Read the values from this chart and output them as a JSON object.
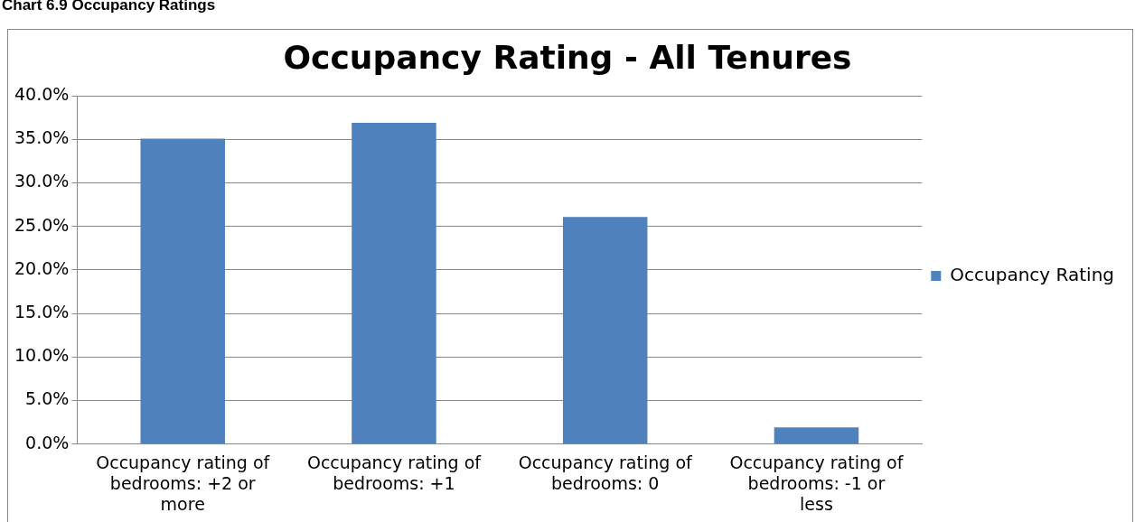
{
  "chart_data": {
    "type": "bar",
    "subtitle": "Chart 6.9 Occupancy Ratings",
    "title": "Occupancy Rating - All Tenures",
    "categories": [
      "Occupancy rating of bedrooms: +2 or more",
      "Occupancy rating of bedrooms: +1",
      "Occupancy rating of bedrooms: 0",
      "Occupancy rating of bedrooms: -1 or less"
    ],
    "series": [
      {
        "name": "Occupancy Rating",
        "color": "#4f81bd",
        "values": [
          35.1,
          36.9,
          26.1,
          1.9
        ]
      }
    ],
    "ylim": [
      0,
      40
    ],
    "yticks": [
      {
        "value": 0,
        "label": "0.0%"
      },
      {
        "value": 5,
        "label": "5.0%"
      },
      {
        "value": 10,
        "label": "10.0%"
      },
      {
        "value": 15,
        "label": "15.0%"
      },
      {
        "value": 20,
        "label": "20.0%"
      },
      {
        "value": 25,
        "label": "25.0%"
      },
      {
        "value": 30,
        "label": "30.0%"
      },
      {
        "value": 35,
        "label": "35.0%"
      },
      {
        "value": 40,
        "label": "40.0%"
      }
    ],
    "grid": "y",
    "legend": "right"
  }
}
